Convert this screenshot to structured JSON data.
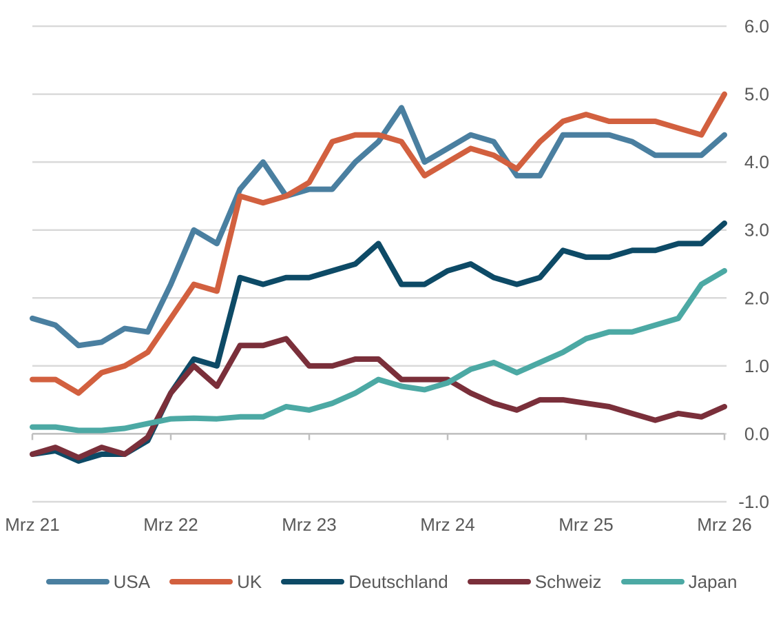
{
  "chart_data": {
    "type": "line",
    "title": "",
    "xlabel": "",
    "ylabel": "",
    "x_tick_labels": [
      "Mrz 21",
      "Mrz 22",
      "Mrz 23",
      "Mrz 24",
      "Mrz 25",
      "Mrz 26"
    ],
    "y_tick_labels": [
      "6.0",
      "5.0",
      "4.0",
      "3.0",
      "2.0",
      "1.0",
      "0.0",
      "-1.0"
    ],
    "ylim": [
      -1.0,
      6.0
    ],
    "xlim": [
      "2021-03",
      "2026-03"
    ],
    "y_axis_position": "right",
    "grid": "horizontal",
    "legend_position": "bottom",
    "x": [
      "2021-03",
      "2021-05",
      "2021-07",
      "2021-09",
      "2021-11",
      "2022-01",
      "2022-03",
      "2022-05",
      "2022-07",
      "2022-09",
      "2022-11",
      "2023-01",
      "2023-03",
      "2023-05",
      "2023-07",
      "2023-09",
      "2023-11",
      "2024-01",
      "2024-03",
      "2024-05",
      "2024-07",
      "2024-09",
      "2024-11",
      "2025-01",
      "2025-03",
      "2025-05",
      "2025-07",
      "2025-09",
      "2025-11",
      "2026-01",
      "2026-03"
    ],
    "series": [
      {
        "name": "USA",
        "color": "#4A7FA0",
        "values": [
          1.7,
          1.6,
          1.3,
          1.35,
          1.55,
          1.5,
          2.2,
          3.0,
          2.8,
          3.6,
          4.0,
          3.5,
          3.6,
          3.6,
          4.0,
          4.3,
          4.8,
          4.0,
          4.2,
          4.4,
          4.3,
          3.8,
          3.8,
          4.4,
          4.4,
          4.4,
          4.3,
          4.1,
          4.1,
          4.1,
          4.4
        ]
      },
      {
        "name": "UK",
        "color": "#D2603F",
        "values": [
          0.8,
          0.8,
          0.6,
          0.9,
          1.0,
          1.2,
          1.7,
          2.2,
          2.1,
          3.5,
          3.4,
          3.5,
          3.7,
          4.3,
          4.4,
          4.4,
          4.3,
          3.8,
          4.0,
          4.2,
          4.1,
          3.9,
          4.3,
          4.6,
          4.7,
          4.6,
          4.6,
          4.6,
          4.5,
          4.4,
          5.0
        ]
      },
      {
        "name": "Deutschland",
        "color": "#0D4A66",
        "values": [
          -0.3,
          -0.25,
          -0.4,
          -0.3,
          -0.3,
          -0.1,
          0.6,
          1.1,
          1.0,
          2.3,
          2.2,
          2.3,
          2.3,
          2.4,
          2.5,
          2.8,
          2.2,
          2.2,
          2.4,
          2.5,
          2.3,
          2.2,
          2.3,
          2.7,
          2.6,
          2.6,
          2.7,
          2.7,
          2.8,
          2.8,
          3.1
        ]
      },
      {
        "name": "Schweiz",
        "color": "#7A2F3A",
        "values": [
          -0.3,
          -0.2,
          -0.35,
          -0.2,
          -0.3,
          -0.05,
          0.6,
          1.0,
          0.7,
          1.3,
          1.3,
          1.4,
          1.0,
          1.0,
          1.1,
          1.1,
          0.8,
          0.8,
          0.8,
          0.6,
          0.45,
          0.35,
          0.5,
          0.5,
          0.45,
          0.4,
          0.3,
          0.2,
          0.3,
          0.25,
          0.4
        ]
      },
      {
        "name": "Japan",
        "color": "#4CA9A4",
        "values": [
          0.1,
          0.1,
          0.05,
          0.05,
          0.08,
          0.15,
          0.22,
          0.23,
          0.22,
          0.25,
          0.25,
          0.4,
          0.35,
          0.45,
          0.6,
          0.8,
          0.7,
          0.65,
          0.75,
          0.95,
          1.05,
          0.9,
          1.05,
          1.2,
          1.4,
          1.5,
          1.5,
          1.6,
          1.7,
          2.2,
          2.4
        ]
      }
    ]
  }
}
